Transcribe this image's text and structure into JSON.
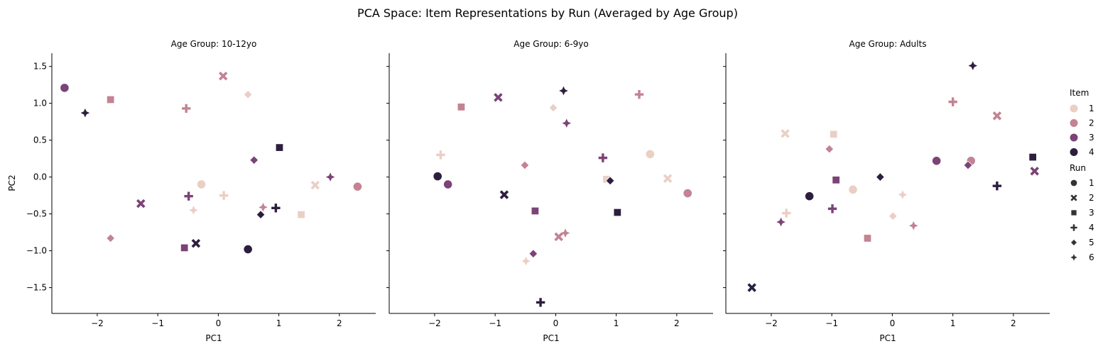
{
  "chart_data": {
    "type": "scatter",
    "title": "PCA Space: Item Representations by Run (Averaged by Age Group)",
    "xlabel": "PC1",
    "ylabel": "PC2",
    "xlim": [
      -2.75,
      2.6
    ],
    "ylim": [
      -1.85,
      1.68
    ],
    "xticks": [
      {
        "v": -2,
        "label": "−2"
      },
      {
        "v": -1,
        "label": "−1"
      },
      {
        "v": 0,
        "label": "0"
      },
      {
        "v": 1,
        "label": "1"
      },
      {
        "v": 2,
        "label": "2"
      }
    ],
    "yticks": [
      {
        "v": 1.5,
        "label": "1.5"
      },
      {
        "v": 1.0,
        "label": "1.0"
      },
      {
        "v": 0.5,
        "label": "0.5"
      },
      {
        "v": 0.0,
        "label": "0.0"
      },
      {
        "v": -0.5,
        "label": "−0.5"
      },
      {
        "v": -1.0,
        "label": "−1.0"
      },
      {
        "v": -1.5,
        "label": "−1.5"
      }
    ],
    "item_colors": {
      "1": "#ebcfc4",
      "2": "#c38392",
      "3": "#7b4376",
      "4": "#2d1e3e"
    },
    "run_markers": {
      "1": "circle",
      "2": "x",
      "3": "square",
      "4": "plus",
      "5": "diamond",
      "6": "star4"
    },
    "legend": {
      "placement": "right",
      "item_title": "Item",
      "items": [
        "1",
        "2",
        "3",
        "4"
      ],
      "run_title": "Run",
      "runs": [
        "1",
        "2",
        "3",
        "4",
        "5",
        "6"
      ]
    },
    "panels": [
      {
        "title": "Age Group: 10-12yo",
        "points": [
          {
            "item": "1",
            "run": "1",
            "x": -0.28,
            "y": -0.1
          },
          {
            "item": "1",
            "run": "2",
            "x": 1.6,
            "y": -0.11
          },
          {
            "item": "1",
            "run": "3",
            "x": 1.37,
            "y": -0.51
          },
          {
            "item": "1",
            "run": "4",
            "x": 0.09,
            "y": -0.25
          },
          {
            "item": "1",
            "run": "5",
            "x": 0.49,
            "y": 1.12
          },
          {
            "item": "1",
            "run": "6",
            "x": -0.41,
            "y": -0.45
          },
          {
            "item": "2",
            "run": "1",
            "x": 2.3,
            "y": -0.13
          },
          {
            "item": "2",
            "run": "2",
            "x": 0.08,
            "y": 1.37
          },
          {
            "item": "2",
            "run": "3",
            "x": -1.78,
            "y": 1.05
          },
          {
            "item": "2",
            "run": "4",
            "x": -0.53,
            "y": 0.93
          },
          {
            "item": "2",
            "run": "5",
            "x": -1.78,
            "y": -0.83
          },
          {
            "item": "2",
            "run": "6",
            "x": 0.74,
            "y": -0.41
          },
          {
            "item": "3",
            "run": "1",
            "x": -2.54,
            "y": 1.21
          },
          {
            "item": "3",
            "run": "2",
            "x": -1.28,
            "y": -0.36
          },
          {
            "item": "3",
            "run": "3",
            "x": -0.56,
            "y": -0.96
          },
          {
            "item": "3",
            "run": "4",
            "x": -0.49,
            "y": -0.26
          },
          {
            "item": "3",
            "run": "5",
            "x": 0.59,
            "y": 0.23
          },
          {
            "item": "3",
            "run": "6",
            "x": 1.85,
            "y": 0.0
          },
          {
            "item": "4",
            "run": "1",
            "x": 0.49,
            "y": -0.98
          },
          {
            "item": "4",
            "run": "2",
            "x": -0.37,
            "y": -0.9
          },
          {
            "item": "4",
            "run": "3",
            "x": 1.01,
            "y": 0.4
          },
          {
            "item": "4",
            "run": "4",
            "x": 0.95,
            "y": -0.42
          },
          {
            "item": "4",
            "run": "5",
            "x": 0.7,
            "y": -0.51
          },
          {
            "item": "4",
            "run": "6",
            "x": -2.2,
            "y": 0.87
          }
        ]
      },
      {
        "title": "Age Group: 6-9yo",
        "points": [
          {
            "item": "1",
            "run": "1",
            "x": 1.56,
            "y": 0.31
          },
          {
            "item": "1",
            "run": "2",
            "x": 1.85,
            "y": -0.02
          },
          {
            "item": "1",
            "run": "3",
            "x": 0.84,
            "y": -0.03
          },
          {
            "item": "1",
            "run": "4",
            "x": -1.9,
            "y": 0.3
          },
          {
            "item": "1",
            "run": "5",
            "x": -0.04,
            "y": 0.94
          },
          {
            "item": "1",
            "run": "6",
            "x": -0.49,
            "y": -1.14
          },
          {
            "item": "2",
            "run": "1",
            "x": 2.18,
            "y": -0.22
          },
          {
            "item": "2",
            "run": "2",
            "x": 0.05,
            "y": -0.81
          },
          {
            "item": "2",
            "run": "3",
            "x": -1.56,
            "y": 0.95
          },
          {
            "item": "2",
            "run": "4",
            "x": 1.38,
            "y": 1.12
          },
          {
            "item": "2",
            "run": "5",
            "x": -0.51,
            "y": 0.16
          },
          {
            "item": "2",
            "run": "6",
            "x": 0.16,
            "y": -0.76
          },
          {
            "item": "3",
            "run": "1",
            "x": -1.78,
            "y": -0.1
          },
          {
            "item": "3",
            "run": "2",
            "x": -0.95,
            "y": 1.08
          },
          {
            "item": "3",
            "run": "3",
            "x": -0.34,
            "y": -0.46
          },
          {
            "item": "3",
            "run": "4",
            "x": 0.78,
            "y": 0.26
          },
          {
            "item": "3",
            "run": "5",
            "x": -0.37,
            "y": -1.04
          },
          {
            "item": "3",
            "run": "6",
            "x": 0.18,
            "y": 0.73
          },
          {
            "item": "4",
            "run": "1",
            "x": -1.95,
            "y": 0.01
          },
          {
            "item": "4",
            "run": "2",
            "x": -0.85,
            "y": -0.24
          },
          {
            "item": "4",
            "run": "3",
            "x": 1.02,
            "y": -0.48
          },
          {
            "item": "4",
            "run": "4",
            "x": -0.25,
            "y": -1.7
          },
          {
            "item": "4",
            "run": "5",
            "x": 0.9,
            "y": -0.05
          },
          {
            "item": "4",
            "run": "6",
            "x": 0.13,
            "y": 1.17
          }
        ]
      },
      {
        "title": "Age Group: Adults",
        "points": [
          {
            "item": "1",
            "run": "1",
            "x": -0.65,
            "y": -0.17
          },
          {
            "item": "1",
            "run": "2",
            "x": -1.77,
            "y": 0.59
          },
          {
            "item": "1",
            "run": "3",
            "x": -0.97,
            "y": 0.58
          },
          {
            "item": "1",
            "run": "4",
            "x": -1.75,
            "y": -0.49
          },
          {
            "item": "1",
            "run": "5",
            "x": 0.01,
            "y": -0.53
          },
          {
            "item": "1",
            "run": "6",
            "x": 0.17,
            "y": -0.24
          },
          {
            "item": "2",
            "run": "1",
            "x": 1.3,
            "y": 0.22
          },
          {
            "item": "2",
            "run": "2",
            "x": 1.73,
            "y": 0.83
          },
          {
            "item": "2",
            "run": "3",
            "x": -0.41,
            "y": -0.83
          },
          {
            "item": "2",
            "run": "4",
            "x": 1.0,
            "y": 1.02
          },
          {
            "item": "2",
            "run": "5",
            "x": -1.04,
            "y": 0.38
          },
          {
            "item": "2",
            "run": "6",
            "x": 0.35,
            "y": -0.66
          },
          {
            "item": "3",
            "run": "1",
            "x": 0.73,
            "y": 0.22
          },
          {
            "item": "3",
            "run": "2",
            "x": 2.35,
            "y": 0.08
          },
          {
            "item": "3",
            "run": "3",
            "x": -0.93,
            "y": -0.04
          },
          {
            "item": "3",
            "run": "4",
            "x": -0.99,
            "y": -0.43
          },
          {
            "item": "3",
            "run": "5",
            "x": 1.25,
            "y": 0.16
          },
          {
            "item": "3",
            "run": "6",
            "x": -1.84,
            "y": -0.61
          },
          {
            "item": "4",
            "run": "1",
            "x": -1.37,
            "y": -0.26
          },
          {
            "item": "4",
            "run": "2",
            "x": -2.32,
            "y": -1.5
          },
          {
            "item": "4",
            "run": "3",
            "x": 2.32,
            "y": 0.27
          },
          {
            "item": "4",
            "run": "4",
            "x": 1.73,
            "y": -0.12
          },
          {
            "item": "4",
            "run": "5",
            "x": -0.2,
            "y": 0.0
          },
          {
            "item": "4",
            "run": "6",
            "x": 1.33,
            "y": 1.51
          }
        ]
      }
    ]
  }
}
